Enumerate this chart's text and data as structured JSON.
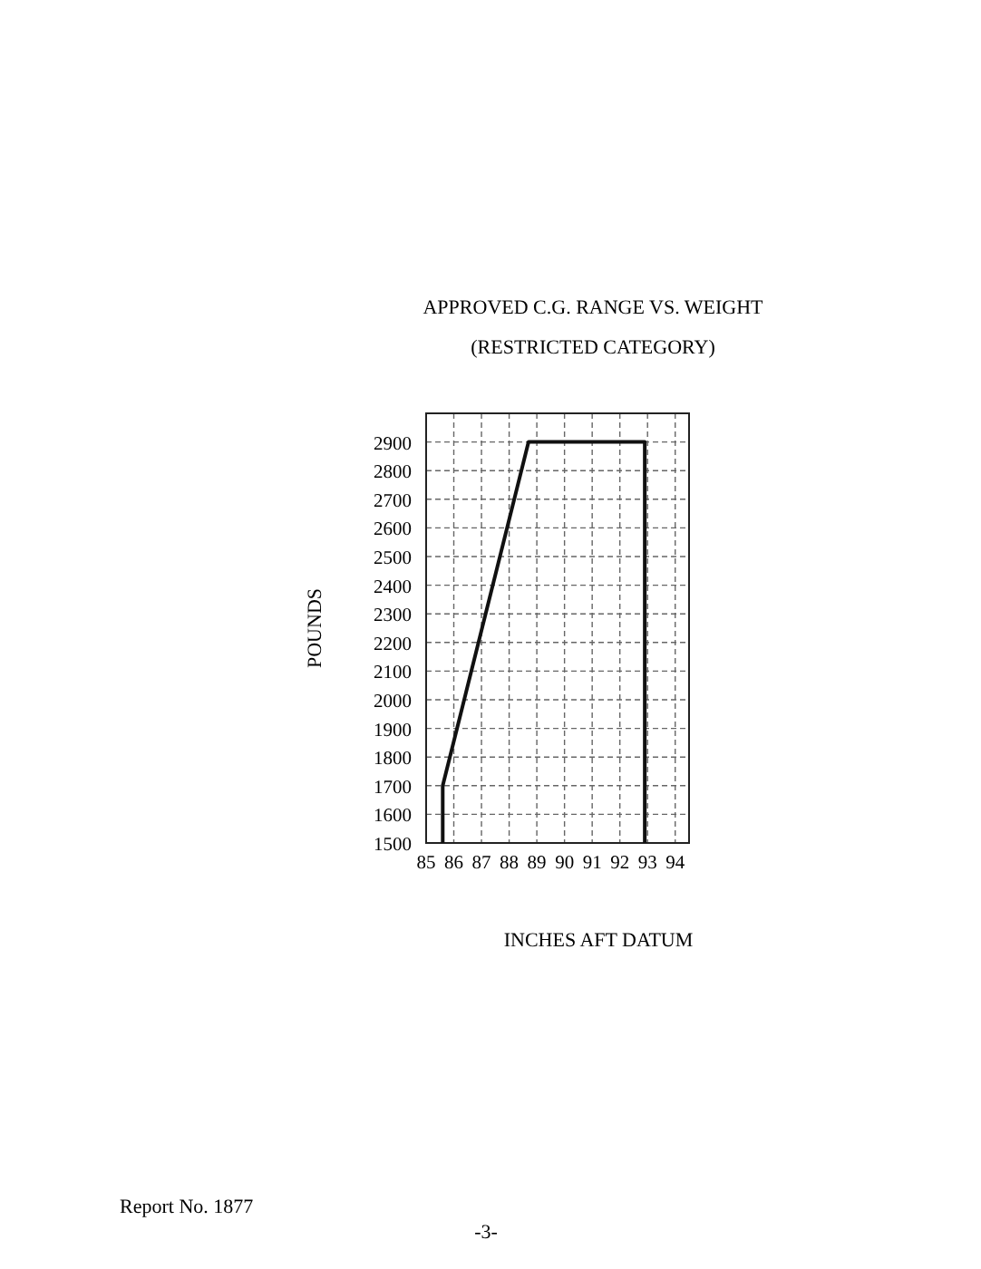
{
  "chart_data": {
    "type": "line",
    "title": "APPROVED C.G. RANGE VS. WEIGHT",
    "subtitle": "(RESTRICTED CATEGORY)",
    "xlabel": "INCHES AFT DATUM",
    "ylabel": "POUNDS",
    "x": [
      85.6,
      85.6,
      88.7,
      92.9,
      92.9
    ],
    "series": [
      {
        "color": "#111111",
        "values": [
          1500,
          1700,
          2900,
          2900,
          1500
        ]
      }
    ],
    "xlim": [
      85,
      94.5
    ],
    "xticks": [
      85,
      86,
      87,
      88,
      89,
      90,
      91,
      92,
      93,
      94
    ],
    "ylim": [
      1500,
      3000
    ],
    "yticks": [
      1500,
      1600,
      1700,
      1800,
      1900,
      2000,
      2100,
      2200,
      2300,
      2400,
      2500,
      2600,
      2700,
      2800,
      2900
    ],
    "grid": true,
    "line_style": "solid",
    "marker": "none",
    "annotations": [
      "Report No. 1877",
      "-3-"
    ]
  }
}
